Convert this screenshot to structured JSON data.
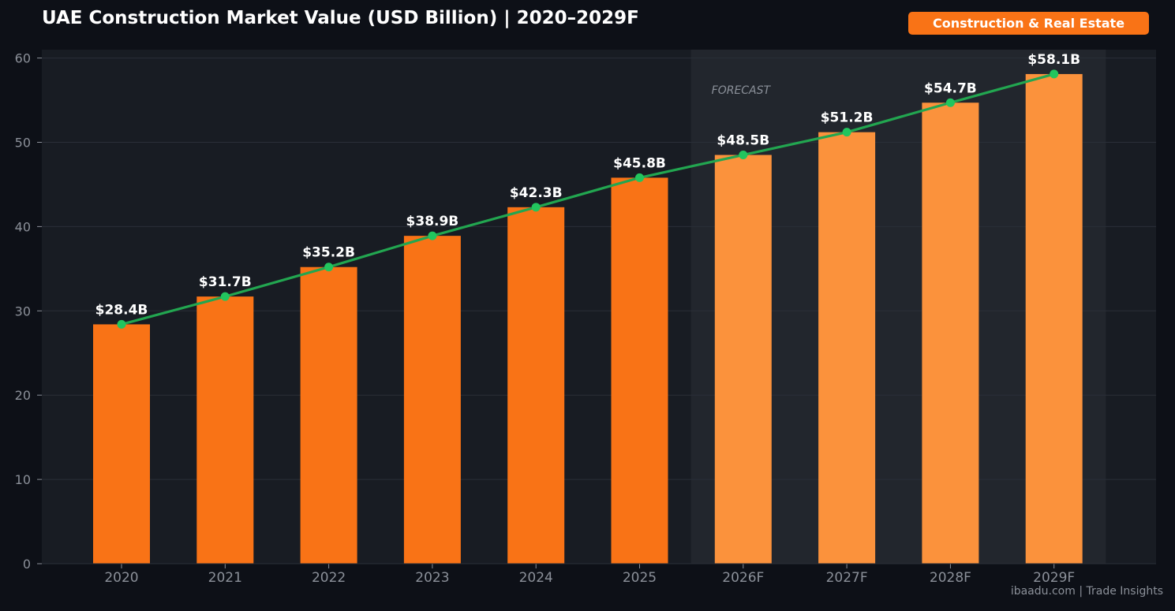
{
  "header": {
    "title": "UAE Construction Market Value (USD Billion) | 2020–2029F",
    "badge": "Construction & Real Estate"
  },
  "footer": {
    "watermark": "ibaadu.com | Trade Insights"
  },
  "colors": {
    "background": "#0d1017",
    "plot_background": "#181c23",
    "forecast_shade": "#22262d",
    "actual_bar": "#f97316",
    "forecast_bar": "#fb923c",
    "trend_line": "#22a650",
    "trend_marker": "#22c55e"
  },
  "chart_data": {
    "type": "bar",
    "categories": [
      "2020",
      "2021",
      "2022",
      "2023",
      "2024",
      "2025",
      "2026F",
      "2027F",
      "2028F",
      "2029F"
    ],
    "values": [
      28.4,
      31.7,
      35.2,
      38.9,
      42.3,
      45.8,
      48.5,
      51.2,
      54.7,
      58.1
    ],
    "value_labels": [
      "$28.4B",
      "$31.7B",
      "$35.2B",
      "$38.9B",
      "$42.3B",
      "$45.8B",
      "$48.5B",
      "$51.2B",
      "$54.7B",
      "$58.1B"
    ],
    "forecast_start_index": 6,
    "forecast_label": "FORECAST",
    "overlay_line": true,
    "ylim": [
      0,
      61
    ],
    "yticks": [
      0,
      10,
      20,
      30,
      40,
      50,
      60
    ],
    "grid": true
  }
}
